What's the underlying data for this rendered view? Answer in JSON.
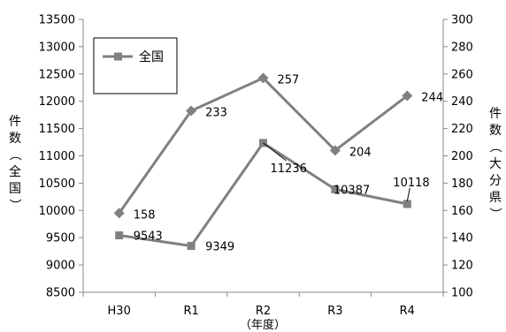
{
  "chart_data": {
    "type": "line",
    "categories": [
      "H30",
      "R1",
      "R2",
      "R3",
      "R4"
    ],
    "xlabel": "（年度）",
    "ylabel_left": [
      "件",
      "数",
      "（",
      "全",
      "国",
      "）"
    ],
    "ylabel_right": [
      "件",
      "数",
      "（",
      "大",
      "分",
      "県",
      "）"
    ],
    "y_left": {
      "min": 8500,
      "max": 13500,
      "step": 500
    },
    "y_right": {
      "min": 100,
      "max": 300,
      "step": 20
    },
    "grid": false,
    "legend": {
      "placement": "top-left",
      "entries": [
        "全国"
      ]
    },
    "series": [
      {
        "name": "全国",
        "axis": "left",
        "marker": "square",
        "color": "#808080",
        "values": [
          9543,
          9349,
          11236,
          10387,
          10118
        ]
      },
      {
        "axis": "right",
        "marker": "diamond",
        "color": "#808080",
        "values": [
          158,
          233,
          257,
          204,
          244
        ]
      }
    ],
    "data_labels": [
      [
        "9543",
        "9349",
        "11236",
        "10387",
        "10118"
      ],
      [
        "158",
        "233",
        "257",
        "204",
        "244"
      ]
    ]
  }
}
